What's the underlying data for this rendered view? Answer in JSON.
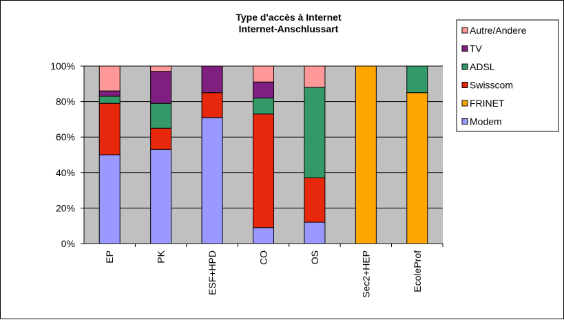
{
  "chart_data": {
    "type": "bar",
    "stacked": true,
    "title": [
      "Type d'accès à Internet",
      "Internet-Anschlussart"
    ],
    "categories": [
      "EP",
      "PK",
      "ESF+HPD",
      "CO",
      "OS",
      "Sec2+HEP",
      "EcoleProf"
    ],
    "ylim": [
      0,
      100
    ],
    "y_ticks": [
      "0%",
      "20%",
      "40%",
      "60%",
      "80%",
      "100%"
    ],
    "grid": "horizontal",
    "legend_position": "right",
    "series": [
      {
        "name": "Modem",
        "color": "#9999ff",
        "values": [
          50,
          53,
          71,
          9,
          12,
          0,
          0
        ]
      },
      {
        "name": "FRINET",
        "color": "#ffa500",
        "values": [
          0,
          0,
          0,
          0,
          0,
          100,
          85
        ]
      },
      {
        "name": "Swisscom",
        "color": "#e8280c",
        "values": [
          29,
          12,
          14,
          64,
          25,
          0,
          0
        ]
      },
      {
        "name": "ADSL",
        "color": "#339966",
        "values": [
          4,
          14,
          0,
          9,
          51,
          0,
          15
        ]
      },
      {
        "name": "TV",
        "color": "#7f1f7f",
        "values": [
          3,
          18,
          15,
          9,
          0,
          0,
          0
        ]
      },
      {
        "name": "Autre/Andere",
        "color": "#ff9999",
        "values": [
          14,
          3,
          0,
          9,
          12,
          0,
          0
        ]
      }
    ],
    "plot_background": "#c0c0c0"
  }
}
